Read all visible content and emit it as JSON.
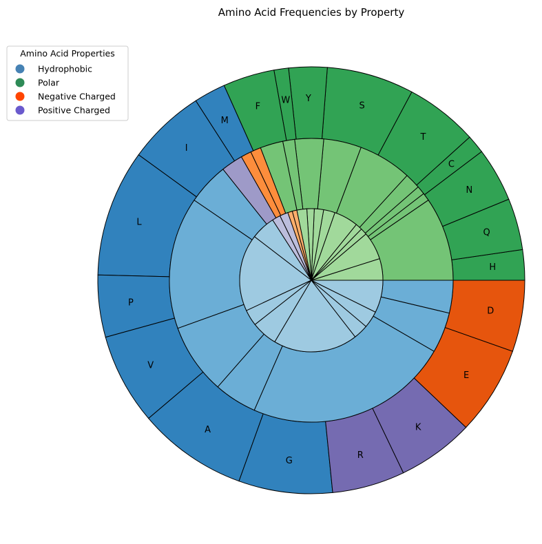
{
  "chart_data": {
    "type": "pie",
    "subtype": "nested-donut",
    "title": "Amino Acid Frequencies by Property",
    "legend": {
      "title": "Amino Acid Properties",
      "placement": "top-left",
      "items": [
        {
          "label": "Hydrophobic",
          "color": "#4682B4"
        },
        {
          "label": "Polar",
          "color": "#2E8B57"
        },
        {
          "label": "Negative Charged",
          "color": "#FF4500"
        },
        {
          "label": "Positive Charged",
          "color": "#6A5ACD"
        }
      ]
    },
    "start_angle_deg": 0,
    "direction": "counterclockwise",
    "outer_ring": {
      "description": "amino acid frequency",
      "slices": [
        {
          "label": "H",
          "group": "Polar",
          "value": 2.3,
          "color": "#31a354"
        },
        {
          "label": "Q",
          "group": "Polar",
          "value": 3.9,
          "color": "#31a354"
        },
        {
          "label": "N",
          "group": "Polar",
          "value": 4.1,
          "color": "#31a354"
        },
        {
          "label": "C",
          "group": "Polar",
          "value": 1.4,
          "color": "#31a354"
        },
        {
          "label": "T",
          "group": "Polar",
          "value": 5.5,
          "color": "#31a354"
        },
        {
          "label": "S",
          "group": "Polar",
          "value": 6.6,
          "color": "#31a354"
        },
        {
          "label": "Y",
          "group": "Polar",
          "value": 2.9,
          "color": "#31a354"
        },
        {
          "label": "W",
          "group": "Polar",
          "value": 1.1,
          "color": "#31a354"
        },
        {
          "label": "F",
          "group": "Polar",
          "value": 3.9,
          "color": "#31a354"
        },
        {
          "label": "M",
          "group": "Hydrophobic",
          "value": 2.4,
          "color": "#3182bd"
        },
        {
          "label": "I",
          "group": "Hydrophobic",
          "value": 5.9,
          "color": "#3182bd"
        },
        {
          "label": "L",
          "group": "Hydrophobic",
          "value": 9.6,
          "color": "#3182bd"
        },
        {
          "label": "P",
          "group": "Hydrophobic",
          "value": 4.7,
          "color": "#3182bd"
        },
        {
          "label": "V",
          "group": "Hydrophobic",
          "value": 6.9,
          "color": "#3182bd"
        },
        {
          "label": "A",
          "group": "Hydrophobic",
          "value": 8.3,
          "color": "#3182bd"
        },
        {
          "label": "G",
          "group": "Hydrophobic",
          "value": 7.1,
          "color": "#3182bd"
        },
        {
          "label": "R",
          "group": "Positive Charged",
          "value": 5.5,
          "color": "#756bb1"
        },
        {
          "label": "K",
          "group": "Positive Charged",
          "value": 5.8,
          "color": "#756bb1"
        },
        {
          "label": "E",
          "group": "Negative Charged",
          "value": 6.7,
          "color": "#e6550d"
        },
        {
          "label": "D",
          "group": "Negative Charged",
          "value": 5.4,
          "color": "#e6550d"
        }
      ]
    },
    "middle_ring": {
      "slices": [
        {
          "value": 9.56,
          "color": "#74c476"
        },
        {
          "value": 0.9,
          "color": "#74c476"
        },
        {
          "value": 0.97,
          "color": "#74c476"
        },
        {
          "value": 1.79,
          "color": "#74c476"
        },
        {
          "value": 6.08,
          "color": "#74c476"
        },
        {
          "value": 4.3,
          "color": "#74c476"
        },
        {
          "value": 3.28,
          "color": "#74c476"
        },
        {
          "value": 1.35,
          "color": "#74c476"
        },
        {
          "value": 2.6,
          "color": "#74c476"
        },
        {
          "value": 1.19,
          "color": "#fd8d3c"
        },
        {
          "value": 1.19,
          "color": "#fd8d3c"
        },
        {
          "value": 2.49,
          "color": "#9e9ac8"
        },
        {
          "value": 4.76,
          "color": "#6baed6"
        },
        {
          "value": 15.05,
          "color": "#6baed6"
        },
        {
          "value": 8.04,
          "color": "#6baed6"
        },
        {
          "value": 4.88,
          "color": "#6baed6"
        },
        {
          "value": 23.23,
          "color": "#6baed6"
        },
        {
          "value": 4.63,
          "color": "#6baed6"
        },
        {
          "value": 3.72,
          "color": "#6baed6"
        }
      ]
    },
    "inner_ring": {
      "slices": [
        {
          "value": 4.93,
          "color": "#a1d99b"
        },
        {
          "value": 6.37,
          "color": "#a1d99b"
        },
        {
          "value": 1.5,
          "color": "#a1d99b"
        },
        {
          "value": 1.53,
          "color": "#a1d99b"
        },
        {
          "value": 5.53,
          "color": "#a1d99b"
        },
        {
          "value": 2.6,
          "color": "#a1d99b"
        },
        {
          "value": 2.12,
          "color": "#a1d99b"
        },
        {
          "value": 1.68,
          "color": "#a1d99b"
        },
        {
          "value": 2.27,
          "color": "#a1d99b"
        },
        {
          "value": 1.05,
          "color": "#fdae6b"
        },
        {
          "value": 1.05,
          "color": "#fdae6b"
        },
        {
          "value": 1.9,
          "color": "#bcbddc"
        },
        {
          "value": 1.9,
          "color": "#bcbddc"
        },
        {
          "value": 5.55,
          "color": "#9ecae1"
        },
        {
          "value": 17.56,
          "color": "#9ecae1"
        },
        {
          "value": 3.68,
          "color": "#9ecae1"
        },
        {
          "value": 5.93,
          "color": "#9ecae1"
        },
        {
          "value": 19.21,
          "color": "#9ecae1"
        },
        {
          "value": 3.38,
          "color": "#9ecae1"
        },
        {
          "value": 3.86,
          "color": "#9ecae1"
        },
        {
          "value": 7.41,
          "color": "#9ecae1"
        }
      ]
    }
  }
}
